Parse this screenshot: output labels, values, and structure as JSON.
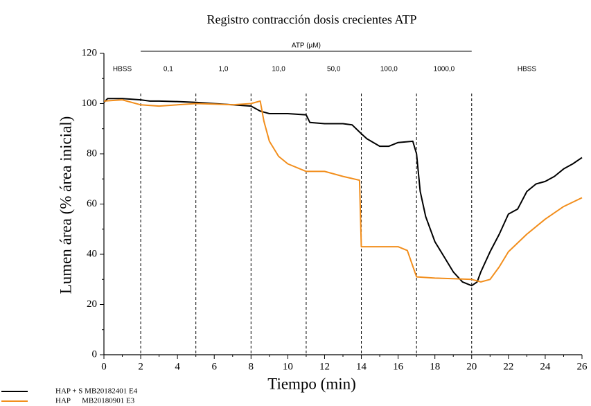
{
  "chart_data": {
    "type": "line",
    "title": "Registro contracción dosis crecientes ATP",
    "xlabel": "Tiempo (min)",
    "ylabel": "Lumen área (% área inicial)",
    "xlim": [
      0,
      26
    ],
    "xticks": [
      0,
      2,
      4,
      6,
      8,
      10,
      12,
      14,
      16,
      18,
      20,
      22,
      24,
      26
    ],
    "xminorticks": [
      1,
      3,
      5,
      7,
      9,
      11,
      13,
      15,
      17,
      19,
      21,
      23,
      25
    ],
    "ylim": [
      0,
      120
    ],
    "yticks": [
      0,
      20,
      40,
      60,
      80,
      100,
      120
    ],
    "yminorticks": [
      10,
      30,
      50,
      70,
      90,
      110
    ],
    "annotation": "ATP (µM)",
    "dividers": [
      2,
      5,
      8,
      11,
      14,
      17,
      20
    ],
    "segment_labels": [
      "HBSS",
      "0,1",
      "1,0",
      "10,0",
      "50,0",
      "100,0",
      "1000,0",
      "HBSS"
    ],
    "legend": "bottom-left",
    "series": [
      {
        "name": "HAP + S MB20182401 E4",
        "color": "#000000",
        "x": [
          0,
          0.2,
          1,
          2,
          2.5,
          3,
          4,
          5,
          6,
          7,
          8,
          8.5,
          9,
          10,
          11,
          11.2,
          12,
          13,
          13.5,
          14,
          14.3,
          15,
          15.5,
          16,
          16.8,
          17,
          17.2,
          17.5,
          18,
          18.5,
          19,
          19.5,
          20,
          20.3,
          20.5,
          21,
          21.5,
          22,
          22.5,
          23,
          23.5,
          24,
          24.5,
          25,
          25.5,
          26
        ],
        "values": [
          100.5,
          102,
          102,
          101.5,
          101,
          101,
          100.8,
          100.5,
          100,
          99.5,
          99,
          97,
          96,
          96,
          95.5,
          92.5,
          92,
          92,
          91.5,
          88,
          86,
          83,
          83,
          84.5,
          85,
          80,
          65,
          55,
          45,
          39,
          33,
          29,
          27.5,
          29,
          33,
          41,
          48,
          56,
          58,
          65,
          68,
          69,
          71,
          74,
          76,
          78.5
        ]
      },
      {
        "name": "HAP      MB20180901 E3",
        "color": "#f28e1c",
        "x": [
          0,
          1,
          2,
          3,
          4,
          5,
          6,
          7,
          8,
          8.5,
          8.7,
          9,
          9.5,
          10,
          11,
          12,
          13,
          13.9,
          14,
          15,
          16,
          16.5,
          17,
          18,
          19,
          20,
          20.5,
          21,
          21.5,
          22,
          23,
          24,
          25,
          26
        ],
        "values": [
          101,
          101.5,
          99.5,
          99,
          99.5,
          100,
          99.8,
          99.5,
          100,
          101,
          93,
          85,
          79,
          76,
          73,
          73,
          71,
          69.5,
          43,
          43,
          43,
          41.5,
          31,
          30.5,
          30.3,
          30,
          29,
          30,
          35,
          41,
          48,
          54,
          59,
          62.5
        ]
      }
    ]
  }
}
